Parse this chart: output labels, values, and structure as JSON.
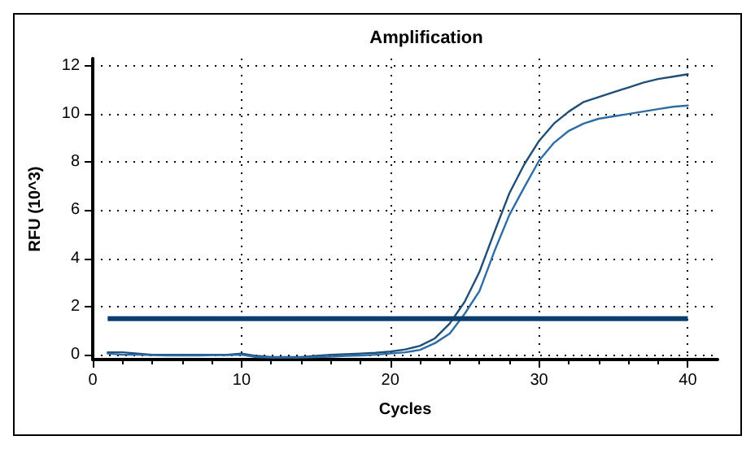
{
  "chart_data": {
    "type": "line",
    "title": "Amplification",
    "xlabel": "Cycles",
    "ylabel": "RFU (10^3)",
    "xlim": [
      0,
      42
    ],
    "xticks": [
      0,
      10,
      20,
      30,
      40
    ],
    "ylim": [
      -0.2,
      12.3
    ],
    "yticks": [
      0,
      2,
      4,
      6,
      8,
      10,
      12
    ],
    "grid": true,
    "marker": "none",
    "line_style": "solid",
    "x": [
      1,
      2,
      3,
      4,
      5,
      6,
      7,
      8,
      9,
      10,
      11,
      12,
      13,
      14,
      15,
      16,
      17,
      18,
      19,
      20,
      21,
      22,
      23,
      24,
      25,
      26,
      27,
      28,
      29,
      30,
      31,
      32,
      33,
      34,
      35,
      36,
      37,
      38,
      39,
      40
    ],
    "series": [
      {
        "color": "#1f4e79",
        "values": [
          0.1,
          0.1,
          0.05,
          0.0,
          0.0,
          0.0,
          0.0,
          0.0,
          0.0,
          0.05,
          -0.05,
          -0.1,
          -0.1,
          -0.1,
          -0.05,
          0.0,
          0.02,
          0.05,
          0.08,
          0.13,
          0.22,
          0.37,
          0.68,
          1.3,
          2.2,
          3.45,
          5.1,
          6.7,
          7.9,
          8.88,
          9.6,
          10.1,
          10.5,
          10.7,
          10.9,
          11.1,
          11.3,
          11.45,
          11.55,
          11.65
        ]
      },
      {
        "color": "#2e6da4",
        "values": [
          0.05,
          0.0,
          0.0,
          -0.02,
          -0.03,
          -0.03,
          -0.03,
          -0.02,
          -0.02,
          0.0,
          -0.1,
          -0.12,
          -0.12,
          -0.12,
          -0.1,
          -0.08,
          -0.05,
          -0.03,
          0.0,
          0.05,
          0.1,
          0.2,
          0.48,
          0.88,
          1.7,
          2.65,
          4.3,
          5.8,
          6.95,
          8.06,
          8.8,
          9.3,
          9.6,
          9.8,
          9.9,
          10.0,
          10.1,
          10.2,
          10.3,
          10.35
        ]
      }
    ],
    "ref_lines": [
      {
        "axis": "y",
        "value": 1.5,
        "color": "#0b3d6e"
      }
    ]
  }
}
